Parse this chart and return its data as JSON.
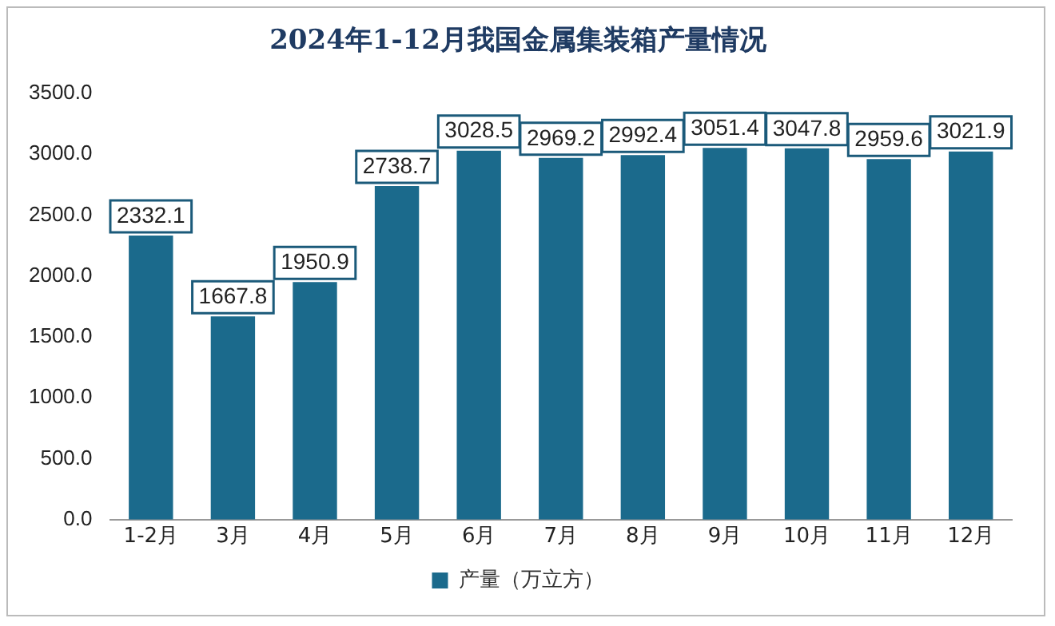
{
  "chart_data": {
    "type": "bar",
    "title": "2024年1-12月我国金属集装箱产量情况",
    "categories": [
      "1-2月",
      "3月",
      "4月",
      "5月",
      "6月",
      "7月",
      "8月",
      "9月",
      "10月",
      "11月",
      "12月"
    ],
    "series": [
      {
        "name": "产量（万立方）",
        "color": "#1b6a8c",
        "values": [
          2332.1,
          1667.8,
          1950.9,
          2738.7,
          3028.5,
          2969.2,
          2992.4,
          3051.4,
          3047.8,
          2959.6,
          3021.9
        ]
      }
    ],
    "ylim": [
      0,
      3500
    ],
    "yticks": [
      {
        "value": 0,
        "label": "0.0"
      },
      {
        "value": 500,
        "label": "500.0"
      },
      {
        "value": 1000,
        "label": "1000.0"
      },
      {
        "value": 1500,
        "label": "1500.0"
      },
      {
        "value": 2000,
        "label": "2000.0"
      },
      {
        "value": 2500,
        "label": "2500.0"
      },
      {
        "value": 3000,
        "label": "3000.0"
      },
      {
        "value": 3500,
        "label": "3500.0"
      }
    ],
    "grid": false,
    "legend": "bottom",
    "data_labels": true
  }
}
